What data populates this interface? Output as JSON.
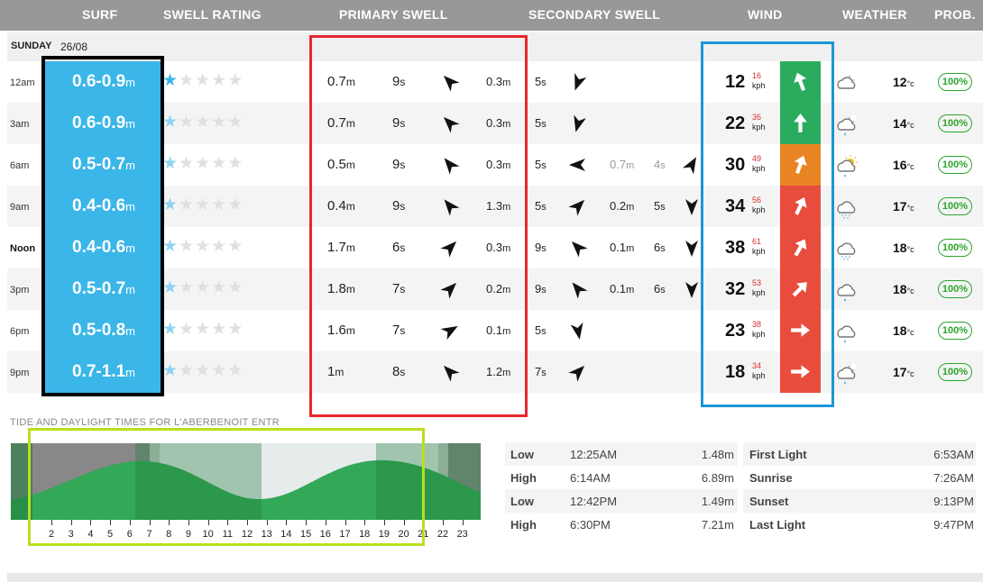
{
  "header": {
    "surf": "SURF",
    "swell_rating": "SWELL RATING",
    "primary_swell": "PRIMARY SWELL",
    "secondary_swell": "SECONDARY SWELL",
    "wind": "WIND",
    "weather": "WEATHER",
    "prob": "PROB."
  },
  "day": {
    "name": "SUNDAY",
    "date": "26/08"
  },
  "colors": {
    "surf": "#3bb6e8",
    "wind_green": "#2bab5e",
    "wind_orange": "#e88424",
    "wind_red": "#e84c3d",
    "highlight_black": "#000000",
    "highlight_red": "#e8272f",
    "highlight_blue": "#1b96d8",
    "highlight_lime": "#b7e021"
  },
  "rows": [
    {
      "time": "12am",
      "bold": false,
      "surf": "0.6-0.9",
      "surf_unit": "m",
      "stars": 1,
      "star_style": "dark",
      "p1": {
        "h": "0.7",
        "u": "m",
        "p": "9",
        "pu": "s",
        "dir": 315,
        "icon": "arrow-icon"
      },
      "p2": {
        "h": "0.3",
        "u": "m",
        "p": "5",
        "pu": "s",
        "dir": 200
      },
      "s1": null,
      "wind": {
        "speed": "12",
        "gust": "16",
        "unit": "kph",
        "level": "green",
        "dir": 340,
        "icon": "wind-arrow-icon"
      },
      "weather": {
        "icon": "cloud-moon-icon",
        "temp": "12",
        "tu": "°c"
      },
      "prob": "100%"
    },
    {
      "time": "3am",
      "bold": false,
      "surf": "0.6-0.9",
      "surf_unit": "m",
      "stars": 1,
      "star_style": "light",
      "p1": {
        "h": "0.7",
        "u": "m",
        "p": "9",
        "pu": "s",
        "dir": 315
      },
      "p2": {
        "h": "0.3",
        "u": "m",
        "p": "5",
        "pu": "s",
        "dir": 195
      },
      "s1": null,
      "wind": {
        "speed": "22",
        "gust": "36",
        "unit": "kph",
        "level": "green",
        "dir": 0
      },
      "weather": {
        "icon": "cloud-rain-moon-icon",
        "temp": "14",
        "tu": "°c"
      },
      "prob": "100%"
    },
    {
      "time": "6am",
      "bold": false,
      "surf": "0.5-0.7",
      "surf_unit": "m",
      "stars": 1,
      "star_style": "light",
      "p1": {
        "h": "0.5",
        "u": "m",
        "p": "9",
        "pu": "s",
        "dir": 320
      },
      "p2": {
        "h": "0.3",
        "u": "m",
        "p": "5",
        "pu": "s",
        "dir": 270
      },
      "s1": {
        "h": "0.7",
        "u": "m",
        "p": "4",
        "pu": "s",
        "dir": 30,
        "grey": true
      },
      "wind": {
        "speed": "30",
        "gust": "49",
        "unit": "kph",
        "level": "orange",
        "dir": 20
      },
      "weather": {
        "icon": "cloud-rain-sun-icon",
        "temp": "16",
        "tu": "°c"
      },
      "prob": "100%"
    },
    {
      "time": "9am",
      "bold": false,
      "surf": "0.4-0.6",
      "surf_unit": "m",
      "stars": 1,
      "star_style": "light",
      "p1": {
        "h": "0.4",
        "u": "m",
        "p": "9",
        "pu": "s",
        "dir": 320
      },
      "p2": {
        "h": "1.3",
        "u": "m",
        "p": "5",
        "pu": "s",
        "dir": 45
      },
      "s1": {
        "h": "0.2",
        "u": "m",
        "p": "5",
        "pu": "s",
        "dir": 180,
        "grey": false
      },
      "wind": {
        "speed": "34",
        "gust": "56",
        "unit": "kph",
        "level": "red",
        "dir": 25
      },
      "weather": {
        "icon": "cloud-drizzle-icon",
        "temp": "17",
        "tu": "°c"
      },
      "prob": "100%"
    },
    {
      "time": "Noon",
      "bold": true,
      "surf": "0.4-0.6",
      "surf_unit": "m",
      "stars": 1,
      "star_style": "light",
      "p1": {
        "h": "1.7",
        "u": "m",
        "p": "6",
        "pu": "s",
        "dir": 45
      },
      "p2": {
        "h": "0.3",
        "u": "m",
        "p": "9",
        "pu": "s",
        "dir": 315
      },
      "s1": {
        "h": "0.1",
        "u": "m",
        "p": "6",
        "pu": "s",
        "dir": 180,
        "grey": false
      },
      "wind": {
        "speed": "38",
        "gust": "61",
        "unit": "kph",
        "level": "red",
        "dir": 30
      },
      "weather": {
        "icon": "cloud-drizzle-icon",
        "temp": "18",
        "tu": "°c"
      },
      "prob": "100%"
    },
    {
      "time": "3pm",
      "bold": false,
      "surf": "0.5-0.7",
      "surf_unit": "m",
      "stars": 1,
      "star_style": "light",
      "p1": {
        "h": "1.8",
        "u": "m",
        "p": "7",
        "pu": "s",
        "dir": 45
      },
      "p2": {
        "h": "0.2",
        "u": "m",
        "p": "9",
        "pu": "s",
        "dir": 320
      },
      "s1": {
        "h": "0.1",
        "u": "m",
        "p": "6",
        "pu": "s",
        "dir": 180,
        "grey": false
      },
      "wind": {
        "speed": "32",
        "gust": "53",
        "unit": "kph",
        "level": "red",
        "dir": 45
      },
      "weather": {
        "icon": "cloud-rain-icon",
        "temp": "18",
        "tu": "°c"
      },
      "prob": "100%"
    },
    {
      "time": "6pm",
      "bold": false,
      "surf": "0.5-0.8",
      "surf_unit": "m",
      "stars": 1,
      "star_style": "light",
      "p1": {
        "h": "1.6",
        "u": "m",
        "p": "7",
        "pu": "s",
        "dir": 60
      },
      "p2": {
        "h": "0.1",
        "u": "m",
        "p": "5",
        "pu": "s",
        "dir": 170
      },
      "s1": null,
      "wind": {
        "speed": "23",
        "gust": "38",
        "unit": "kph",
        "level": "red",
        "dir": 90
      },
      "weather": {
        "icon": "cloud-rain-icon",
        "temp": "18",
        "tu": "°c"
      },
      "prob": "100%"
    },
    {
      "time": "9pm",
      "bold": false,
      "surf": "0.7-1.1",
      "surf_unit": "m",
      "stars": 1,
      "star_style": "light",
      "p1": {
        "h": "1",
        "u": "m",
        "p": "8",
        "pu": "s",
        "dir": 315
      },
      "p2": {
        "h": "1.2",
        "u": "m",
        "p": "7",
        "pu": "s",
        "dir": 45
      },
      "s1": null,
      "wind": {
        "speed": "18",
        "gust": "34",
        "unit": "kph",
        "level": "red",
        "dir": 90
      },
      "weather": {
        "icon": "cloud-rain-moon-icon",
        "temp": "17",
        "tu": "°c"
      },
      "prob": "100%"
    }
  ],
  "tide": {
    "title": "TIDE AND DAYLIGHT TIMES FOR L'ABERBENOIT ENTR",
    "hours": [
      "2",
      "3",
      "4",
      "5",
      "6",
      "7",
      "8",
      "9",
      "10",
      "11",
      "12",
      "13",
      "14",
      "15",
      "16",
      "17",
      "18",
      "19",
      "20",
      "21",
      "22",
      "23"
    ],
    "levels": [
      {
        "type": "Low",
        "time": "12:25AM",
        "height": "1.48m"
      },
      {
        "type": "High",
        "time": "6:14AM",
        "height": "6.89m"
      },
      {
        "type": "Low",
        "time": "12:42PM",
        "height": "1.49m"
      },
      {
        "type": "High",
        "time": "6:30PM",
        "height": "7.21m"
      }
    ],
    "daylight": [
      {
        "label": "First Light",
        "time": "6:53AM"
      },
      {
        "label": "Sunrise",
        "time": "7:26AM"
      },
      {
        "label": "Sunset",
        "time": "9:13PM"
      },
      {
        "label": "Last Light",
        "time": "9:47PM"
      }
    ]
  }
}
